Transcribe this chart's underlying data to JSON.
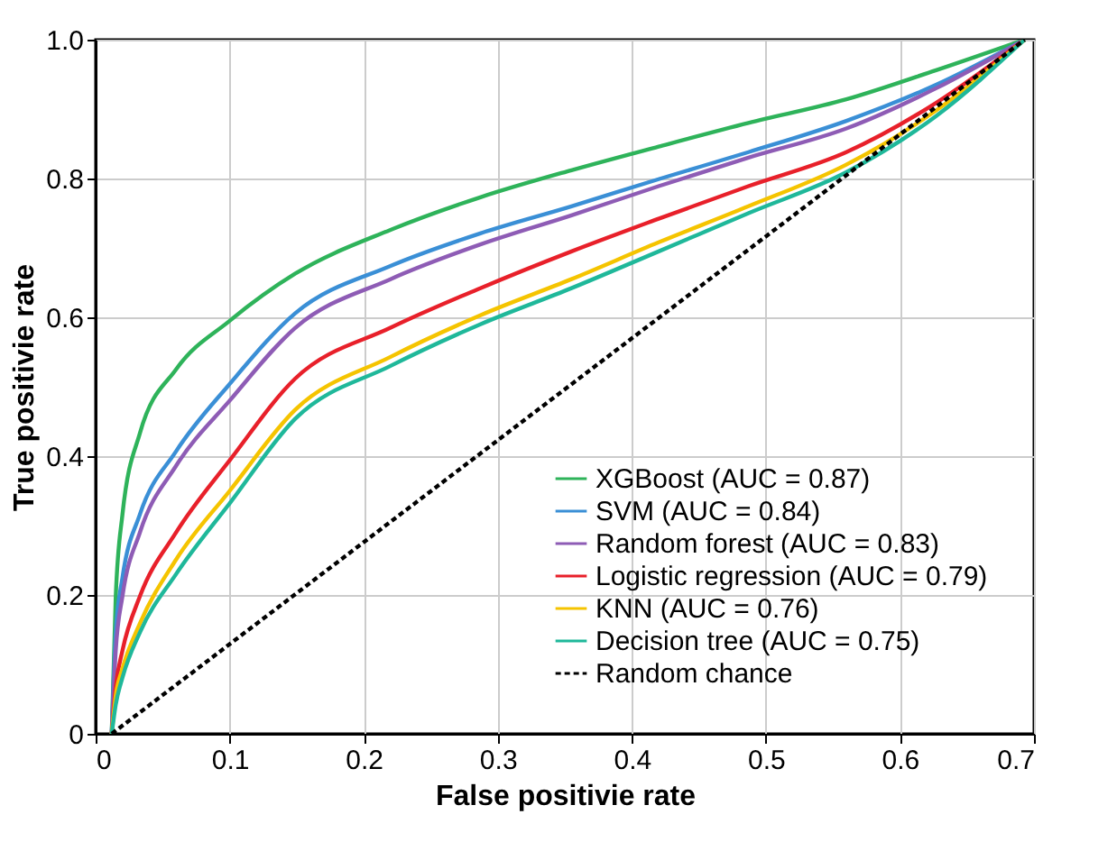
{
  "chart_data": {
    "type": "line",
    "xlabel": "False positivie rate",
    "ylabel": "True positivie rate",
    "x": [
      0.012,
      0.015,
      0.02,
      0.033,
      0.06,
      0.1,
      0.149,
      0.22,
      0.287,
      0.355,
      0.42,
      0.487,
      0.56,
      0.627,
      0.693
    ],
    "series": [
      {
        "name": "XGBoost (AUC = 0.87)",
        "color": "#2eb35a",
        "values": [
          0,
          0.198,
          0.316,
          0.433,
          0.525,
          0.595,
          0.663,
          0.726,
          0.773,
          0.812,
          0.846,
          0.88,
          0.914,
          0.956,
          1
        ]
      },
      {
        "name": "SVM (AUC = 0.84)",
        "color": "#3a8fd6",
        "values": [
          0,
          0.146,
          0.225,
          0.316,
          0.407,
          0.504,
          0.606,
          0.674,
          0.721,
          0.76,
          0.799,
          0.838,
          0.883,
          0.935,
          1
        ]
      },
      {
        "name": "Random forest (AUC = 0.83)",
        "color": "#8e5cb5",
        "values": [
          0,
          0.12,
          0.198,
          0.29,
          0.386,
          0.48,
          0.585,
          0.655,
          0.705,
          0.747,
          0.789,
          0.83,
          0.872,
          0.93,
          1
        ]
      },
      {
        "name": "Logistic regression (AUC = 0.79)",
        "color": "#e8202a",
        "values": [
          0,
          0.068,
          0.12,
          0.198,
          0.29,
          0.394,
          0.512,
          0.585,
          0.642,
          0.695,
          0.742,
          0.789,
          0.838,
          0.909,
          1
        ]
      },
      {
        "name": "KNN (AUC = 0.76)",
        "color": "#f5c400",
        "values": [
          0,
          0.055,
          0.094,
          0.159,
          0.251,
          0.35,
          0.467,
          0.543,
          0.603,
          0.655,
          0.708,
          0.76,
          0.82,
          0.898,
          1
        ]
      },
      {
        "name": "Decision tree (AUC = 0.75)",
        "color": "#1fb89a",
        "values": [
          0,
          0.042,
          0.081,
          0.146,
          0.23,
          0.332,
          0.454,
          0.53,
          0.59,
          0.642,
          0.695,
          0.75,
          0.809,
          0.89,
          1
        ]
      },
      {
        "name": "Random chance",
        "color": "#000000",
        "line_style": "dashed",
        "x": [
          0.012,
          0.693
        ],
        "values": [
          0,
          1
        ]
      }
    ],
    "xlim": [
      0,
      0.7
    ],
    "xticks": [
      0,
      0.1,
      0.2,
      0.3,
      0.4,
      0.5,
      0.6,
      0.7
    ],
    "ylim": [
      0,
      1
    ],
    "yticks": [
      0,
      0.2,
      0.4,
      0.6,
      0.8,
      {
        "value": 1,
        "label": "1.0"
      }
    ],
    "grid": true,
    "legend": "bottom right",
    "line_style": "solid"
  }
}
